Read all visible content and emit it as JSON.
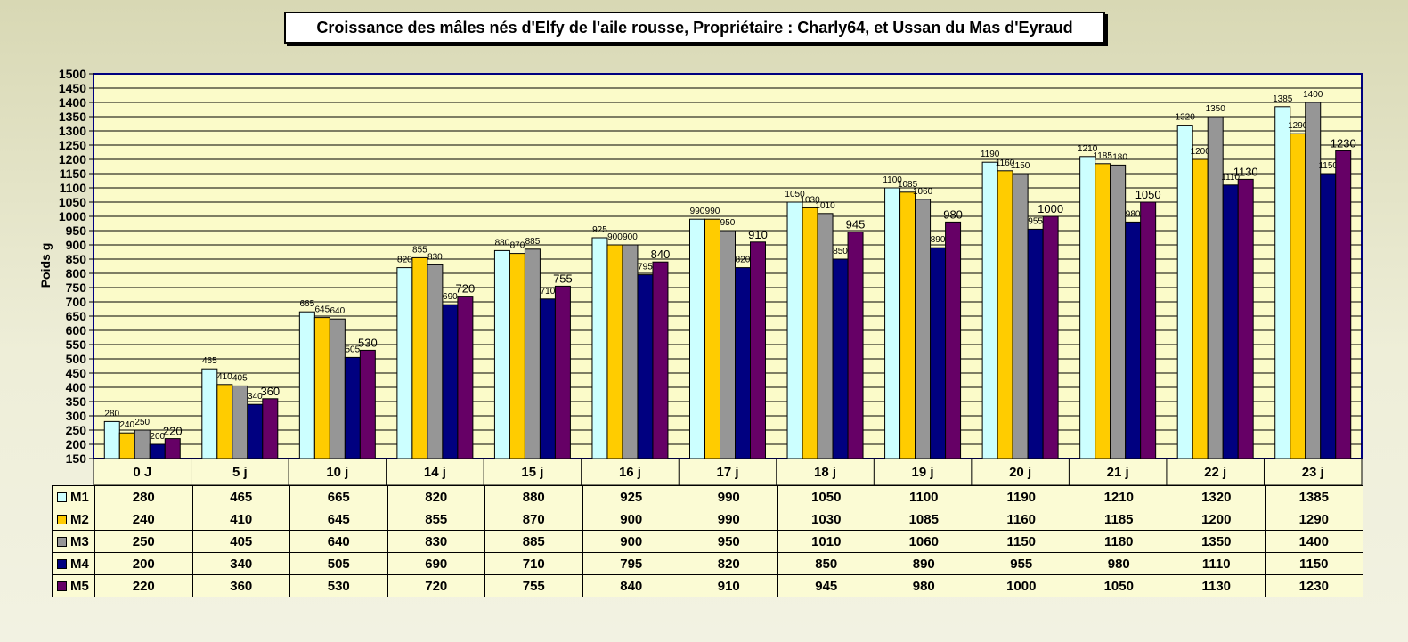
{
  "chart_data": {
    "type": "bar",
    "title": "Croissance des mâles nés d'Elfy de l'aile rousse, Propriétaire : Charly64, et Ussan du Mas d'Eyraud",
    "ylabel": "Poids g",
    "xlabel": "",
    "ylim": [
      150,
      1500
    ],
    "ytick_step": 50,
    "grid": true,
    "categories": [
      "0 J",
      "5 j",
      "10 j",
      "14 j",
      "15 j",
      "16 j",
      "17 j",
      "18 j",
      "19 j",
      "20 j",
      "21 j",
      "22 j",
      "23 j"
    ],
    "series": [
      {
        "name": "M1",
        "color": "#ccffff",
        "values": [
          280,
          465,
          665,
          820,
          880,
          925,
          990,
          1050,
          1100,
          1190,
          1210,
          1320,
          1385
        ]
      },
      {
        "name": "M2",
        "color": "#ffcc00",
        "values": [
          240,
          410,
          645,
          855,
          870,
          900,
          990,
          1030,
          1085,
          1160,
          1185,
          1200,
          1290
        ]
      },
      {
        "name": "M3",
        "color": "#969696",
        "values": [
          250,
          405,
          640,
          830,
          885,
          900,
          950,
          1010,
          1060,
          1150,
          1180,
          1350,
          1400
        ]
      },
      {
        "name": "M4",
        "color": "#000080",
        "values": [
          200,
          340,
          505,
          690,
          710,
          795,
          820,
          850,
          890,
          955,
          980,
          1110,
          1150
        ]
      },
      {
        "name": "M5",
        "color": "#660066",
        "values": [
          220,
          360,
          530,
          720,
          755,
          840,
          910,
          945,
          980,
          1000,
          1050,
          1130,
          1230
        ]
      }
    ]
  }
}
